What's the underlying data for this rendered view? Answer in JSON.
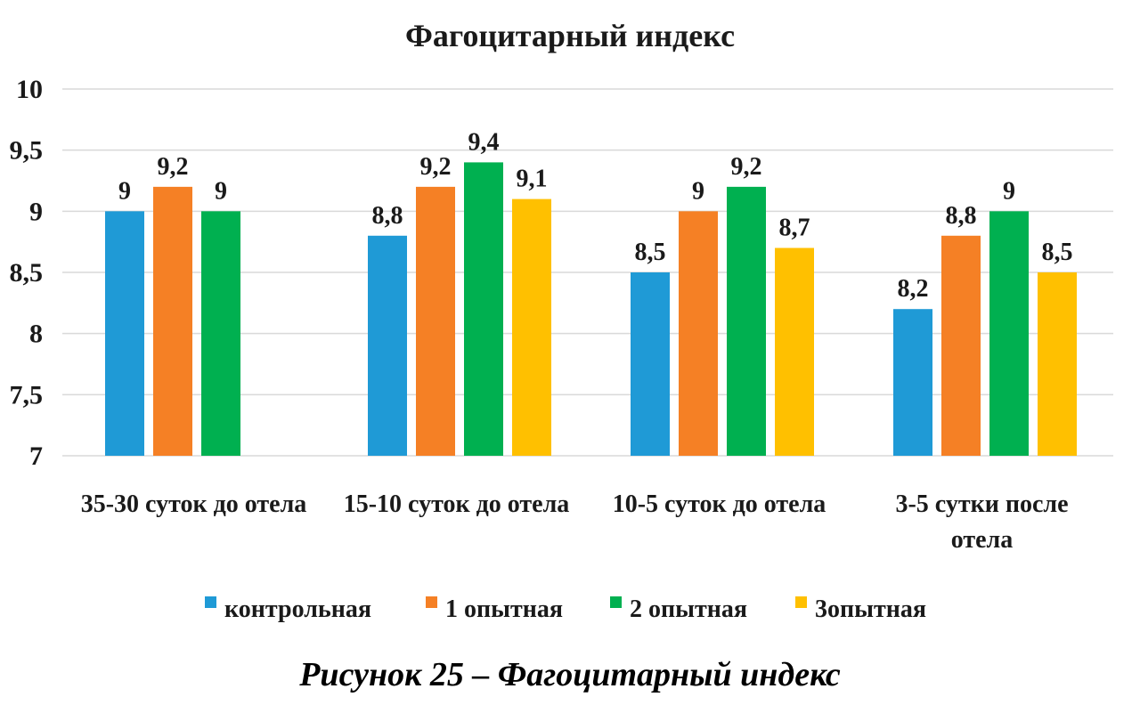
{
  "chart_data": {
    "type": "bar",
    "title": "Фагоцитарный индекс",
    "categories": [
      "35-30 суток до отела",
      "15-10 суток до отела",
      "10-5 суток до отела",
      "3-5 сутки после отела"
    ],
    "series": [
      {
        "name": "контрольная",
        "color": "#1f9ad6",
        "values": [
          9,
          8.8,
          8.5,
          8.2
        ],
        "labels": [
          "9",
          "8,8",
          "8,5",
          "8,2"
        ]
      },
      {
        "name": "1 опытная",
        "color": "#f58025",
        "values": [
          9.2,
          9.2,
          9,
          8.8
        ],
        "labels": [
          "9,2",
          "9,2",
          "9",
          "8,8"
        ]
      },
      {
        "name": "2 опытная",
        "color": "#00b050",
        "values": [
          9,
          9.4,
          9.2,
          9
        ],
        "labels": [
          "9",
          "9,4",
          "9,2",
          "9"
        ]
      },
      {
        "name": "3опытная",
        "color": "#ffc000",
        "values": [
          null,
          9.1,
          8.7,
          8.5
        ],
        "labels": [
          "",
          "9,1",
          "8,7",
          "8,5"
        ]
      }
    ],
    "ylim": [
      7,
      10
    ],
    "yticks": [
      7,
      7.5,
      8,
      8.5,
      9,
      9.5,
      10
    ],
    "ytick_labels": [
      "7",
      "7,5",
      "8",
      "8,5",
      "9",
      "9,5",
      "10"
    ],
    "grid": true,
    "legend_position": "bottom",
    "xlabel": "",
    "ylabel": ""
  },
  "caption": "Рисунок 25 – Фагоцитарный индекс"
}
